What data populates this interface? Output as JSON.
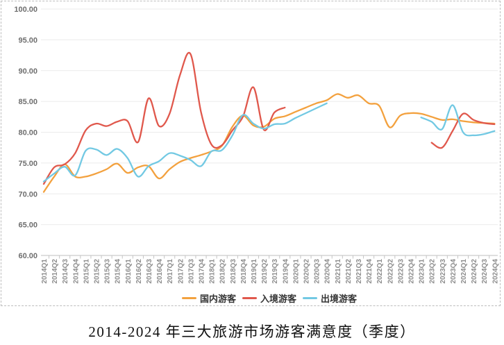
{
  "chart_data": {
    "type": "line",
    "smooth": true,
    "title": "2014-2024 年三大旅游市场游客满意度（季度）",
    "ylabel": "",
    "xlabel": "",
    "ylim": [
      60,
      100
    ],
    "ytick_step": 5,
    "ytick_labels": [
      "100.00",
      "95.00",
      "90.00",
      "85.00",
      "80.00",
      "75.00",
      "70.00",
      "65.00",
      "60.00"
    ],
    "grid": true,
    "legend_position": "bottom",
    "categories": [
      "2014Q1",
      "2014Q2",
      "2014Q3",
      "2014Q4",
      "2015Q1",
      "2015Q2",
      "2015Q3",
      "2015Q4",
      "2016Q1",
      "2016Q2",
      "2016Q3",
      "2016Q4",
      "2017Q1",
      "2017Q2",
      "2017Q3",
      "2017Q4",
      "2018Q1",
      "2018Q2",
      "2018Q3",
      "2018Q4",
      "2019Q1",
      "2019Q2",
      "2019Q3",
      "2019Q4",
      "2020Q1",
      "2020Q2",
      "2020Q3",
      "2020Q4",
      "2021Q1",
      "2021Q2",
      "2021Q3",
      "2021Q4",
      "2022Q1",
      "2022Q2",
      "2022Q3",
      "2022Q4",
      "2023Q1",
      "2023Q2",
      "2023Q3",
      "2023Q4",
      "2024Q1",
      "2024Q2",
      "2024Q3",
      "2024Q4"
    ],
    "series": [
      {
        "key": "domestic",
        "name": "国内游客",
        "color": "#F3A13E",
        "values": [
          70.3,
          72.8,
          74.8,
          72.8,
          72.8,
          73.3,
          74.0,
          74.9,
          73.4,
          74.3,
          74.5,
          72.5,
          74.0,
          75.2,
          75.8,
          76.3,
          76.9,
          77.8,
          80.9,
          82.7,
          81.1,
          80.9,
          82.2,
          82.6,
          83.3,
          84.0,
          84.7,
          85.2,
          86.2,
          85.6,
          86.0,
          84.7,
          84.3,
          80.8,
          82.7,
          83.1,
          83.0,
          82.5,
          82.0,
          82.1,
          81.8,
          81.6,
          81.5,
          81.4
        ]
      },
      {
        "key": "inbound",
        "name": "入境游客",
        "color": "#E0584C",
        "values": [
          71.6,
          74.3,
          74.8,
          76.6,
          80.3,
          81.4,
          81.0,
          81.7,
          81.8,
          78.4,
          85.5,
          81.0,
          83.0,
          89.3,
          92.7,
          83.3,
          78.0,
          77.9,
          80.3,
          82.5,
          87.3,
          80.4,
          83.2,
          84.0,
          null,
          null,
          null,
          null,
          null,
          null,
          null,
          null,
          null,
          null,
          null,
          null,
          null,
          78.3,
          77.5,
          80.2,
          83.0,
          82.0,
          81.5,
          81.3
        ]
      },
      {
        "key": "outbound",
        "name": "出境游客",
        "color": "#72C9E3",
        "values": [
          72.0,
          73.3,
          74.4,
          73.0,
          77.0,
          77.2,
          76.3,
          77.3,
          75.8,
          72.8,
          74.5,
          75.3,
          76.6,
          76.2,
          75.5,
          74.5,
          76.9,
          77.1,
          79.5,
          82.8,
          81.4,
          80.6,
          81.3,
          81.4,
          82.3,
          83.1,
          83.9,
          84.7,
          null,
          null,
          null,
          null,
          null,
          null,
          null,
          null,
          82.4,
          81.7,
          80.5,
          84.4,
          80.0,
          79.5,
          79.7,
          80.2
        ]
      }
    ],
    "gap_note_inbound": "no data 2020Q1-2023Q1",
    "gap_note_outbound": "no data 2021Q1-2022Q4"
  },
  "colors": {
    "grid": "#ebebeb",
    "axis": "#bfbfbf",
    "tick": "#c4c4c4",
    "ytick_text": "#6e6e6e",
    "xtick_text": "#8e8e8e",
    "frame_border": "#bdbdbd"
  }
}
